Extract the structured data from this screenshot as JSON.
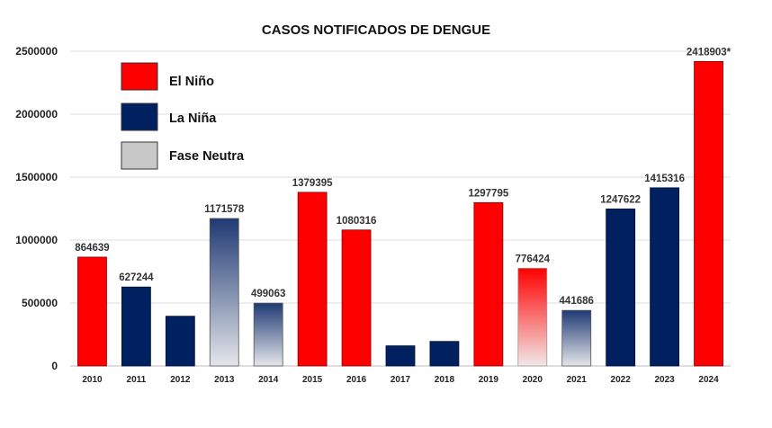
{
  "chart_data": {
    "type": "bar",
    "title": "CASOS NOTIFICADOS DE DENGUE",
    "xlabel": "",
    "ylabel": "",
    "ylim": [
      0,
      2500000
    ],
    "yticks": [
      "0",
      "500000",
      "1000000",
      "1500000",
      "2000000",
      "2500000"
    ],
    "ytick_values": [
      0,
      500000,
      1000000,
      1500000,
      2000000,
      2500000
    ],
    "grid": true,
    "legend_position": "top-left",
    "categories": [
      "2010",
      "2011",
      "2012",
      "2013",
      "2014",
      "2015",
      "2016",
      "2017",
      "2018",
      "2019",
      "2020",
      "2021",
      "2022",
      "2023",
      "2024"
    ],
    "values": [
      864639,
      627244,
      395000,
      1171578,
      499063,
      1379395,
      1080316,
      160000,
      195000,
      1297795,
      776424,
      441686,
      1247622,
      1415316,
      2418903
    ],
    "data_labels": [
      "864639",
      "627244",
      null,
      "1171578",
      "499063",
      "1379395",
      "1080316",
      null,
      null,
      "1297795",
      "776424",
      "441686",
      "1247622",
      "1415316",
      "2418903*"
    ],
    "phases": [
      "nino",
      "nina",
      "nina",
      "neutra",
      "neutra",
      "nino",
      "nino",
      "nina",
      "nina",
      "nino",
      "nino_neutra",
      "neutra",
      "nina",
      "nina",
      "nino"
    ],
    "legend": [
      {
        "key": "nino",
        "label": "El Niño"
      },
      {
        "key": "nina",
        "label": "La Niña"
      },
      {
        "key": "neutra",
        "label": "Fase Neutra"
      }
    ],
    "colors": {
      "nino": "#ff0000",
      "nina": "#002060",
      "neutra_top": "#1f3a74",
      "neutra_bottom": "#e4e6ea",
      "nino_fade_bottom": "#f2e8e8",
      "legend_neutra": "#c8c8c8"
    }
  }
}
